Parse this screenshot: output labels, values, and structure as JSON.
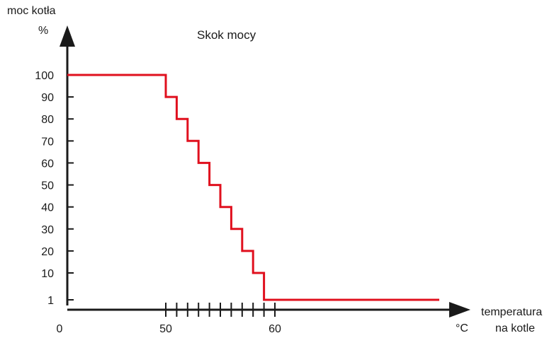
{
  "chart_data": {
    "type": "line",
    "title": "Skok mocy",
    "ylabel_line1": "moc kotła",
    "ylabel_line2": "%",
    "xlabel_line1": "temperatura",
    "xlabel_line2": "na kotle",
    "x_unit": "°C",
    "y_ticks": [
      "100",
      "90",
      "80",
      "70",
      "60",
      "50",
      "40",
      "30",
      "20",
      "10",
      "1"
    ],
    "x_tick_labels": [
      "0",
      "50",
      "60"
    ],
    "x_minor_ticks": [
      50,
      51,
      52,
      53,
      54,
      55,
      56,
      57,
      58,
      59,
      60
    ],
    "series": [
      {
        "color": "#e0101e",
        "x": [
          0,
          50,
          50,
          51,
          51,
          52,
          52,
          53,
          53,
          54,
          54,
          55,
          55,
          56,
          56,
          57,
          57,
          58,
          58,
          59,
          59,
          76
        ],
        "y": [
          100,
          100,
          90,
          90,
          80,
          80,
          70,
          70,
          60,
          60,
          50,
          50,
          40,
          40,
          30,
          30,
          20,
          20,
          10,
          10,
          1,
          1
        ]
      }
    ],
    "axis_color": "#1a1a1a",
    "grid": false
  }
}
